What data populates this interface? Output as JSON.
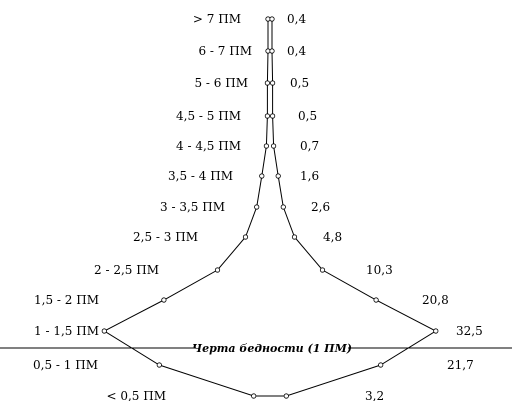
{
  "chart_data": {
    "type": "area",
    "title": "",
    "xlabel": "",
    "ylabel": "",
    "categories": [
      "> 7 ПМ",
      "6 - 7 ПМ",
      "5 - 6 ПМ",
      "4,5 - 5 ПМ",
      "4 - 4,5 ПМ",
      "3,5 - 4 ПМ",
      "3 - 3,5 ПМ",
      "2,5 - 3 ПМ",
      "2 - 2,5 ПМ",
      "1,5 - 2 ПМ",
      "1 - 1,5 ПМ",
      "0,5 - 1 ПМ",
      "< 0,5 ПМ"
    ],
    "value_labels": [
      "0,4",
      "0,4",
      "0,5",
      "0,5",
      "0,7",
      "1,6",
      "2,6",
      "4,8",
      "10,3",
      "20,8",
      "32,5",
      "21,7",
      "3,2"
    ],
    "values": [
      0.4,
      0.4,
      0.5,
      0.5,
      0.7,
      1.6,
      2.6,
      4.8,
      10.3,
      20.8,
      32.5,
      21.7,
      3.2
    ],
    "annotation": "Черта бедности (1 ПМ)",
    "symmetric": true,
    "grid": false,
    "legend": "none"
  }
}
